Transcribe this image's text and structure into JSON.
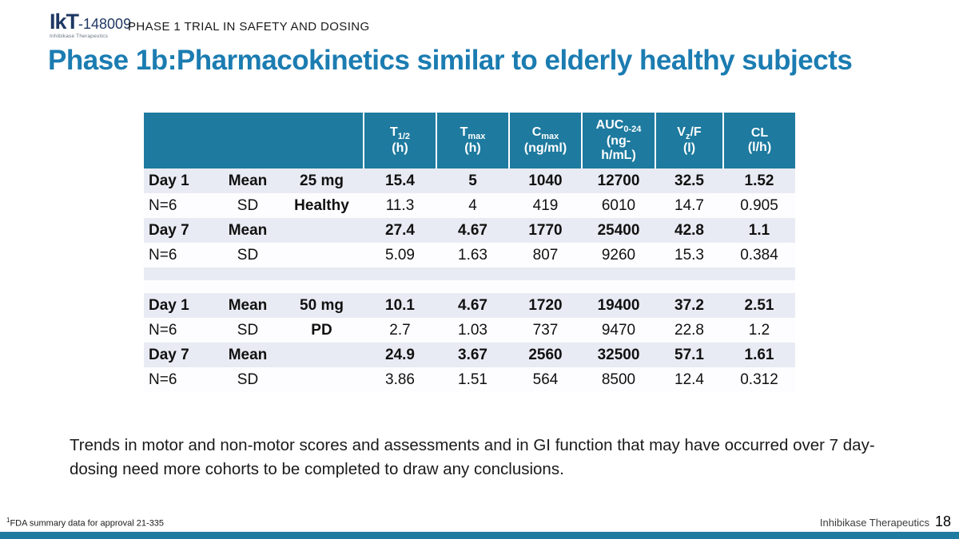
{
  "header": {
    "logo_main": "IkT",
    "logo_suffix": "-148009",
    "logo_subtext": "Inhibikase Therapeutics",
    "eyebrow": "PHASE 1 TRIAL IN SAFETY AND DOSING",
    "title": "Phase 1b:Pharmacokinetics similar to elderly healthy subjects"
  },
  "table": {
    "columns": [
      {
        "id": "t-half",
        "pre": "T",
        "sub": "1/2",
        "post": "",
        "unit": "(h)"
      },
      {
        "id": "t-max",
        "pre": "T",
        "sub": "max",
        "post": "",
        "unit": "(h)"
      },
      {
        "id": "c-max",
        "pre": "C",
        "sub": "max",
        "post": "",
        "unit": "(ng/ml)"
      },
      {
        "id": "auc",
        "pre": "AUC",
        "sub": "0-24",
        "post": "",
        "unit": "(ng-\nh/mL)"
      },
      {
        "id": "vzf",
        "pre": "V",
        "sub": "z",
        "post": "/F",
        "unit": "(l)"
      },
      {
        "id": "cl",
        "pre": "CL",
        "sub": "",
        "post": "",
        "unit": "(l/h)"
      }
    ],
    "rows": [
      {
        "label": "Day 1",
        "stat": "Mean",
        "group": "25 mg",
        "values": [
          "15.4",
          "5",
          "1040",
          "12700",
          "32.5",
          "1.52"
        ],
        "emphasis": true
      },
      {
        "label": "N=6",
        "stat": "SD",
        "group": "Healthy",
        "values": [
          "11.3",
          "4",
          "419",
          "6010",
          "14.7",
          "0.905"
        ],
        "emphasis": false
      },
      {
        "label": "Day 7",
        "stat": "Mean",
        "group": "",
        "values": [
          "27.4",
          "4.67",
          "1770",
          "25400",
          "42.8",
          "1.1"
        ],
        "emphasis": true
      },
      {
        "label": "N=6",
        "stat": "SD",
        "group": "",
        "values": [
          "5.09",
          "1.63",
          "807",
          "9260",
          "15.3",
          "0.384"
        ],
        "emphasis": false
      },
      {
        "spacer": true
      },
      {
        "spacer": true
      },
      {
        "label": "Day 1",
        "stat": "Mean",
        "group": "50 mg",
        "values": [
          "10.1",
          "4.67",
          "1720",
          "19400",
          "37.2",
          "2.51"
        ],
        "emphasis": true
      },
      {
        "label": "N=6",
        "stat": "SD",
        "group": "PD",
        "values": [
          "2.7",
          "1.03",
          "737",
          "9470",
          "22.8",
          "1.2"
        ],
        "emphasis": false
      },
      {
        "label": "Day 7",
        "stat": "Mean",
        "group": "",
        "values": [
          "24.9",
          "3.67",
          "2560",
          "32500",
          "57.1",
          "1.61"
        ],
        "emphasis": true
      },
      {
        "label": "N=6",
        "stat": "SD",
        "group": "",
        "values": [
          "3.86",
          "1.51",
          "564",
          "8500",
          "12.4",
          "0.312"
        ],
        "emphasis": false
      }
    ]
  },
  "body_text": "Trends in motor and non-motor scores and assessments and in GI function that may have occurred over 7 day-dosing need more cohorts to be completed to draw any conclusions.",
  "footer": {
    "footnote_sup": "1",
    "footnote_text": "FDA summary data for approval 21-335",
    "company": "Inhibikase Therapeutics",
    "page_number": "18"
  },
  "colors": {
    "teal": "#1E7A9F",
    "title_blue": "#1B7CB1",
    "band": "#E9EBF4",
    "navy": "#1F3864"
  }
}
